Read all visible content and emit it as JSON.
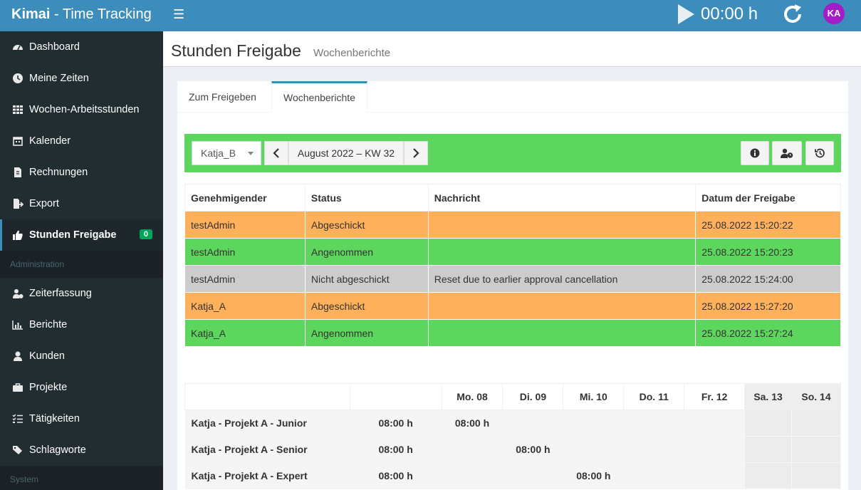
{
  "app": {
    "brand_bold": "Kimai",
    "brand_rest": " - Time Tracking"
  },
  "topbar": {
    "timer": "00:00 h",
    "avatar_initials": "KA"
  },
  "sidebar": {
    "items": [
      {
        "label": "Dashboard",
        "icon": "dashboard-icon"
      },
      {
        "label": "Meine Zeiten",
        "icon": "clock-icon"
      },
      {
        "label": "Wochen-Arbeitsstunden",
        "icon": "grid-icon"
      },
      {
        "label": "Kalender",
        "icon": "calendar-icon"
      },
      {
        "label": "Rechnungen",
        "icon": "invoice-icon"
      },
      {
        "label": "Export",
        "icon": "export-icon"
      },
      {
        "label": "Stunden Freigabe",
        "icon": "thumbs-up-icon",
        "badge": "0"
      }
    ],
    "section_admin": "Administration",
    "admin_items": [
      {
        "label": "Zeiterfassung",
        "icon": "users-clock-icon"
      },
      {
        "label": "Berichte",
        "icon": "bar-chart-icon"
      },
      {
        "label": "Kunden",
        "icon": "user-icon"
      },
      {
        "label": "Projekte",
        "icon": "briefcase-icon"
      },
      {
        "label": "Tätigkeiten",
        "icon": "tasks-icon"
      },
      {
        "label": "Schlagworte",
        "icon": "tags-icon"
      }
    ],
    "section_system": "System"
  },
  "header": {
    "title": "Stunden Freigabe",
    "subtitle": "Wochenberichte"
  },
  "tabs": [
    {
      "label": "Zum Freigeben"
    },
    {
      "label": "Wochenberichte"
    }
  ],
  "toolbar": {
    "user": "Katja_B",
    "week": "August 2022 – KW 32"
  },
  "approvals": {
    "columns": [
      "Genehmigender",
      "Status",
      "Nachricht",
      "Datum der Freigabe"
    ],
    "rows": [
      {
        "approver": "testAdmin",
        "status": "Abgeschickt",
        "message": "",
        "date": "25.08.2022 15:20:22",
        "color": "#ffb05a"
      },
      {
        "approver": "testAdmin",
        "status": "Angenommen",
        "message": "",
        "date": "25.08.2022 15:20:23",
        "color": "#5cd65c"
      },
      {
        "approver": "testAdmin",
        "status": "Nicht abgeschickt",
        "message": "Reset due to earlier approval cancellation",
        "date": "25.08.2022 15:24:00",
        "color": "#cccccc"
      },
      {
        "approver": "Katja_A",
        "status": "Abgeschickt",
        "message": "",
        "date": "25.08.2022 15:27:20",
        "color": "#ffb05a"
      },
      {
        "approver": "Katja_A",
        "status": "Angenommen",
        "message": "",
        "date": "25.08.2022 15:27:24",
        "color": "#5cd65c"
      }
    ]
  },
  "week_table": {
    "days": [
      "Mo. 08",
      "Di. 09",
      "Mi. 10",
      "Do. 11",
      "Fr. 12",
      "Sa. 13",
      "So. 14"
    ],
    "rows": [
      {
        "name": "Katja - Projekt A - Junior",
        "total": "08:00 h",
        "days": [
          "08:00 h",
          "",
          "",
          "",
          "",
          "",
          ""
        ]
      },
      {
        "name": "Katja - Projekt A - Senior",
        "total": "08:00 h",
        "days": [
          "",
          "08:00 h",
          "",
          "",
          "",
          "",
          ""
        ]
      },
      {
        "name": "Katja - Projekt A - Expert",
        "total": "08:00 h",
        "days": [
          "",
          "",
          "08:00 h",
          "",
          "",
          "",
          ""
        ]
      }
    ]
  }
}
